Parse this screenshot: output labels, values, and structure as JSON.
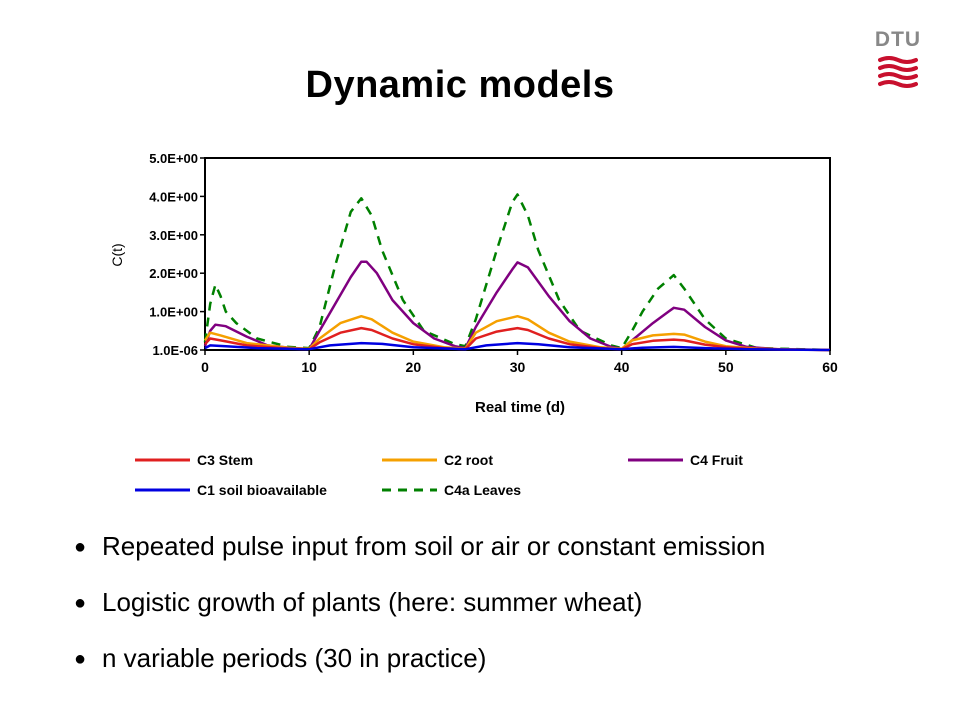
{
  "slide": {
    "title": "Dynamic models",
    "logo_text": "DTU",
    "accent_color": "#c8102e",
    "bullet_symbol": "●",
    "bullets": [
      "Repeated pulse input from soil or air or constant emission",
      "Logistic growth of plants (here: summer wheat)",
      "n variable periods (30 in practice)"
    ]
  },
  "chart_data": {
    "type": "line",
    "xlabel": "Real time (d)",
    "ylabel": "C(t)",
    "xlim": [
      0,
      60
    ],
    "ylim": [
      0,
      5
    ],
    "x_ticks": [
      "0",
      "10",
      "20",
      "30",
      "40",
      "50",
      "60"
    ],
    "y_ticks": [
      "1.0E-06",
      "1.0E+00",
      "2.0E+00",
      "3.0E+00",
      "4.0E+00",
      "5.0E+00"
    ],
    "y_tick_values": [
      0,
      1,
      2,
      3,
      4,
      5
    ],
    "grid": false,
    "legend_position": "bottom",
    "series": [
      {
        "name": "C3 Stem",
        "color": "#e02020",
        "dash": "solid",
        "points": [
          [
            0,
            0.15
          ],
          [
            0.5,
            0.3
          ],
          [
            1.5,
            0.25
          ],
          [
            4,
            0.12
          ],
          [
            8,
            0.04
          ],
          [
            10,
            0.02
          ],
          [
            11,
            0.2
          ],
          [
            13,
            0.45
          ],
          [
            15,
            0.57
          ],
          [
            16,
            0.52
          ],
          [
            18,
            0.3
          ],
          [
            20,
            0.15
          ],
          [
            23,
            0.05
          ],
          [
            25,
            0.02
          ],
          [
            26,
            0.3
          ],
          [
            28,
            0.48
          ],
          [
            30,
            0.57
          ],
          [
            31,
            0.52
          ],
          [
            33,
            0.3
          ],
          [
            35,
            0.15
          ],
          [
            38,
            0.05
          ],
          [
            40,
            0.02
          ],
          [
            41,
            0.15
          ],
          [
            43,
            0.24
          ],
          [
            45,
            0.27
          ],
          [
            46,
            0.25
          ],
          [
            48,
            0.14
          ],
          [
            50,
            0.07
          ],
          [
            53,
            0.02
          ],
          [
            60,
            0.0
          ]
        ]
      },
      {
        "name": "C2 root",
        "color": "#f5a000",
        "dash": "solid",
        "points": [
          [
            0,
            0.25
          ],
          [
            0.5,
            0.45
          ],
          [
            1.5,
            0.38
          ],
          [
            4,
            0.18
          ],
          [
            8,
            0.06
          ],
          [
            10,
            0.03
          ],
          [
            11,
            0.3
          ],
          [
            13,
            0.7
          ],
          [
            15,
            0.88
          ],
          [
            16,
            0.8
          ],
          [
            18,
            0.45
          ],
          [
            20,
            0.22
          ],
          [
            23,
            0.07
          ],
          [
            25,
            0.03
          ],
          [
            26,
            0.45
          ],
          [
            28,
            0.75
          ],
          [
            30,
            0.88
          ],
          [
            31,
            0.8
          ],
          [
            33,
            0.45
          ],
          [
            35,
            0.22
          ],
          [
            38,
            0.07
          ],
          [
            40,
            0.03
          ],
          [
            41,
            0.25
          ],
          [
            43,
            0.38
          ],
          [
            45,
            0.42
          ],
          [
            46,
            0.4
          ],
          [
            48,
            0.22
          ],
          [
            50,
            0.1
          ],
          [
            53,
            0.03
          ],
          [
            60,
            0.0
          ]
        ]
      },
      {
        "name": "C4 Fruit",
        "color": "#800080",
        "dash": "solid",
        "points": [
          [
            0,
            0.1
          ],
          [
            0.5,
            0.5
          ],
          [
            1,
            0.66
          ],
          [
            2,
            0.62
          ],
          [
            4,
            0.35
          ],
          [
            6,
            0.12
          ],
          [
            9,
            0.03
          ],
          [
            10,
            0.02
          ],
          [
            11,
            0.5
          ],
          [
            12.5,
            1.2
          ],
          [
            14,
            1.9
          ],
          [
            15,
            2.3
          ],
          [
            15.5,
            2.3
          ],
          [
            16.5,
            2.0
          ],
          [
            18,
            1.3
          ],
          [
            20,
            0.7
          ],
          [
            22,
            0.3
          ],
          [
            24,
            0.1
          ],
          [
            25,
            0.05
          ],
          [
            26,
            0.6
          ],
          [
            28,
            1.5
          ],
          [
            29.5,
            2.1
          ],
          [
            30,
            2.28
          ],
          [
            31,
            2.15
          ],
          [
            33,
            1.4
          ],
          [
            35,
            0.75
          ],
          [
            37,
            0.3
          ],
          [
            39,
            0.08
          ],
          [
            40,
            0.03
          ],
          [
            41,
            0.25
          ],
          [
            43,
            0.7
          ],
          [
            44.5,
            1.0
          ],
          [
            45,
            1.1
          ],
          [
            46,
            1.05
          ],
          [
            48,
            0.6
          ],
          [
            50,
            0.25
          ],
          [
            52,
            0.08
          ],
          [
            55,
            0.02
          ],
          [
            60,
            0.0
          ]
        ]
      },
      {
        "name": "C1 soil bioavailable",
        "color": "#0000e0",
        "dash": "solid",
        "points": [
          [
            0,
            0.05
          ],
          [
            0.5,
            0.12
          ],
          [
            2,
            0.1
          ],
          [
            5,
            0.05
          ],
          [
            10,
            0.02
          ],
          [
            12,
            0.12
          ],
          [
            15,
            0.18
          ],
          [
            17,
            0.16
          ],
          [
            20,
            0.07
          ],
          [
            25,
            0.02
          ],
          [
            27,
            0.12
          ],
          [
            30,
            0.18
          ],
          [
            32,
            0.15
          ],
          [
            35,
            0.07
          ],
          [
            40,
            0.02
          ],
          [
            42,
            0.06
          ],
          [
            45,
            0.08
          ],
          [
            48,
            0.05
          ],
          [
            52,
            0.02
          ],
          [
            60,
            0.0
          ]
        ]
      },
      {
        "name": "C4a Leaves",
        "color": "#008000",
        "dash": "dashed",
        "points": [
          [
            0,
            0.2
          ],
          [
            0.5,
            1.2
          ],
          [
            1,
            1.7
          ],
          [
            1.5,
            1.4
          ],
          [
            2,
            1.0
          ],
          [
            3,
            0.7
          ],
          [
            5,
            0.3
          ],
          [
            8,
            0.08
          ],
          [
            10,
            0.05
          ],
          [
            11,
            0.6
          ],
          [
            12.5,
            2.2
          ],
          [
            14,
            3.6
          ],
          [
            15,
            3.95
          ],
          [
            16,
            3.5
          ],
          [
            17,
            2.6
          ],
          [
            19,
            1.3
          ],
          [
            21,
            0.5
          ],
          [
            24,
            0.15
          ],
          [
            25,
            0.1
          ],
          [
            26,
            0.8
          ],
          [
            28,
            2.6
          ],
          [
            29.5,
            3.85
          ],
          [
            30,
            4.05
          ],
          [
            31,
            3.5
          ],
          [
            32,
            2.6
          ],
          [
            34,
            1.3
          ],
          [
            36,
            0.5
          ],
          [
            39,
            0.12
          ],
          [
            40,
            0.05
          ],
          [
            41,
            0.5
          ],
          [
            42,
            1.0
          ],
          [
            43.5,
            1.6
          ],
          [
            45,
            1.95
          ],
          [
            46,
            1.6
          ],
          [
            48,
            0.8
          ],
          [
            50,
            0.3
          ],
          [
            53,
            0.05
          ],
          [
            60,
            0.0
          ]
        ]
      }
    ]
  }
}
